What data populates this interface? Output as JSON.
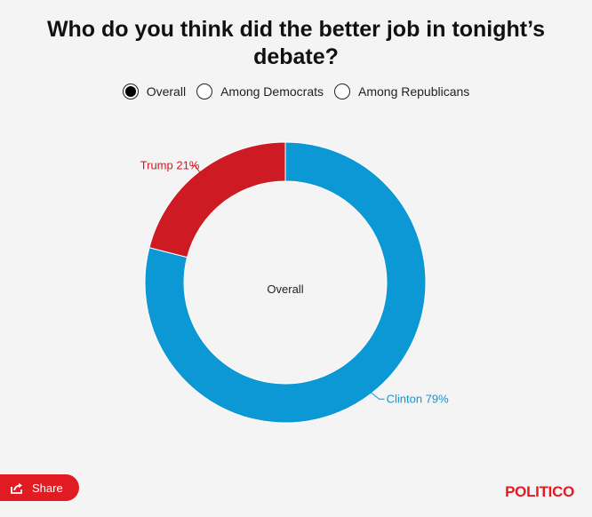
{
  "title": "Who do you think did the better job in tonight’s debate?",
  "options": [
    {
      "label": "Overall",
      "selected": true
    },
    {
      "label": "Among Democrats",
      "selected": false
    },
    {
      "label": "Among Republicans",
      "selected": false
    }
  ],
  "chart_data": {
    "type": "pie",
    "donut": true,
    "center_label": "Overall",
    "categories": [
      "Clinton",
      "Trump"
    ],
    "values": [
      79,
      21
    ],
    "labels": [
      "Clinton 79%",
      "Trump 21%"
    ],
    "colors": [
      "#0c97d5",
      "#ce1a23"
    ]
  },
  "share": {
    "label": "Share",
    "icon": "share-icon"
  },
  "logo": "POLITICO"
}
